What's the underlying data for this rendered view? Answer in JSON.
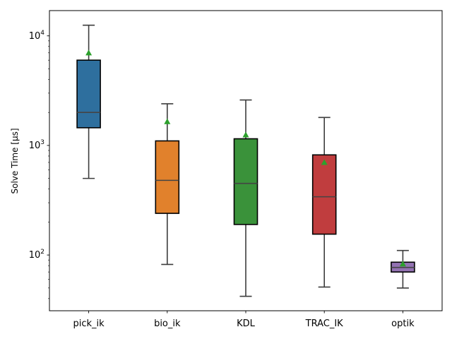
{
  "chart_data": {
    "type": "box",
    "ylabel": "Solve Time [µs]",
    "yscale": "log",
    "ylim": [
      31,
      17000
    ],
    "y_ticks": [
      {
        "value": 100,
        "base": "10",
        "exp": "2"
      },
      {
        "value": 1000,
        "base": "10",
        "exp": "3"
      },
      {
        "value": 10000,
        "base": "10",
        "exp": "4"
      }
    ],
    "categories": [
      "pick_ik",
      "bio_ik",
      "KDL",
      "TRAC_IK",
      "optik"
    ],
    "boxes": [
      {
        "name": "pick_ik",
        "whisker_low": 500,
        "q1": 1450,
        "median": 2000,
        "q3": 6000,
        "whisker_high": 12500,
        "mean": 7000,
        "color": "#2e6f9e"
      },
      {
        "name": "bio_ik",
        "whisker_low": 82,
        "q1": 240,
        "median": 480,
        "q3": 1100,
        "whisker_high": 2400,
        "mean": 1650,
        "color": "#e1812c"
      },
      {
        "name": "KDL",
        "whisker_low": 42,
        "q1": 190,
        "median": 450,
        "q3": 1150,
        "whisker_high": 2600,
        "mean": 1250,
        "color": "#3a923a"
      },
      {
        "name": "TRAC_IK",
        "whisker_low": 51,
        "q1": 155,
        "median": 340,
        "q3": 820,
        "whisker_high": 1800,
        "mean": 700,
        "color": "#c03d3e"
      },
      {
        "name": "optik",
        "whisker_low": 50,
        "q1": 70,
        "median": 77,
        "q3": 86,
        "whisker_high": 110,
        "mean": 83,
        "color": "#9372b2"
      }
    ],
    "mean_marker_color": "#2ca02c",
    "median_line_color": "#444444",
    "grid": false,
    "legend": "none"
  }
}
